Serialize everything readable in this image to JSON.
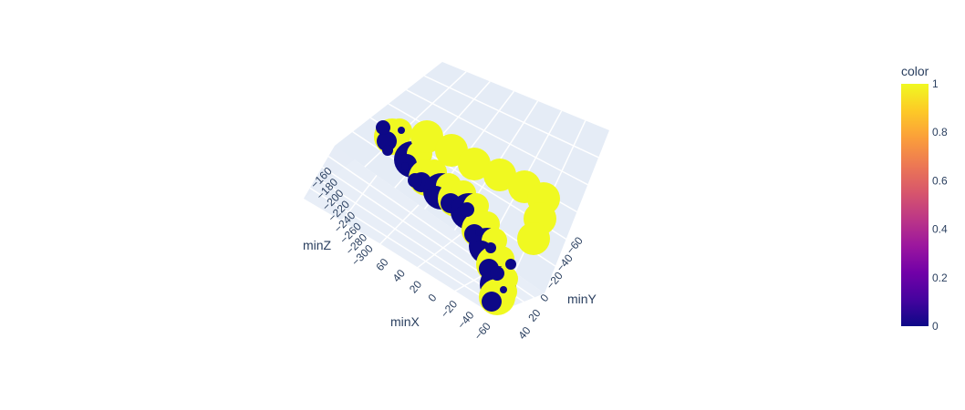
{
  "chart_data": {
    "type": "scatter3d",
    "axes": {
      "x": {
        "title": "minX",
        "ticks": [
          "60",
          "40",
          "20",
          "0",
          "−20",
          "−40",
          "−60"
        ]
      },
      "y": {
        "title": "minY",
        "ticks": [
          "−60",
          "−40",
          "−20",
          "0",
          "20",
          "40"
        ]
      },
      "z": {
        "title": "minZ",
        "ticks": [
          "−160",
          "−180",
          "−200",
          "−220",
          "−240",
          "−260",
          "−280",
          "−300"
        ]
      }
    },
    "colorbar": {
      "title": "color",
      "range": [
        0,
        1
      ],
      "ticks": [
        "1",
        "0.8",
        "0.6",
        "0.4",
        "0.2",
        "0"
      ],
      "colorscale": [
        "#0d0887",
        "#46039f",
        "#7201a8",
        "#9c179e",
        "#bd3786",
        "#d8576b",
        "#ed7953",
        "#fb9f3a",
        "#fdca26",
        "#f0f921"
      ]
    },
    "marker_colors": {
      "low": "#0d0887",
      "high": "#f0f921"
    },
    "scene_colors": {
      "pane": "#e5ecf6",
      "grid": "#ffffff"
    }
  }
}
